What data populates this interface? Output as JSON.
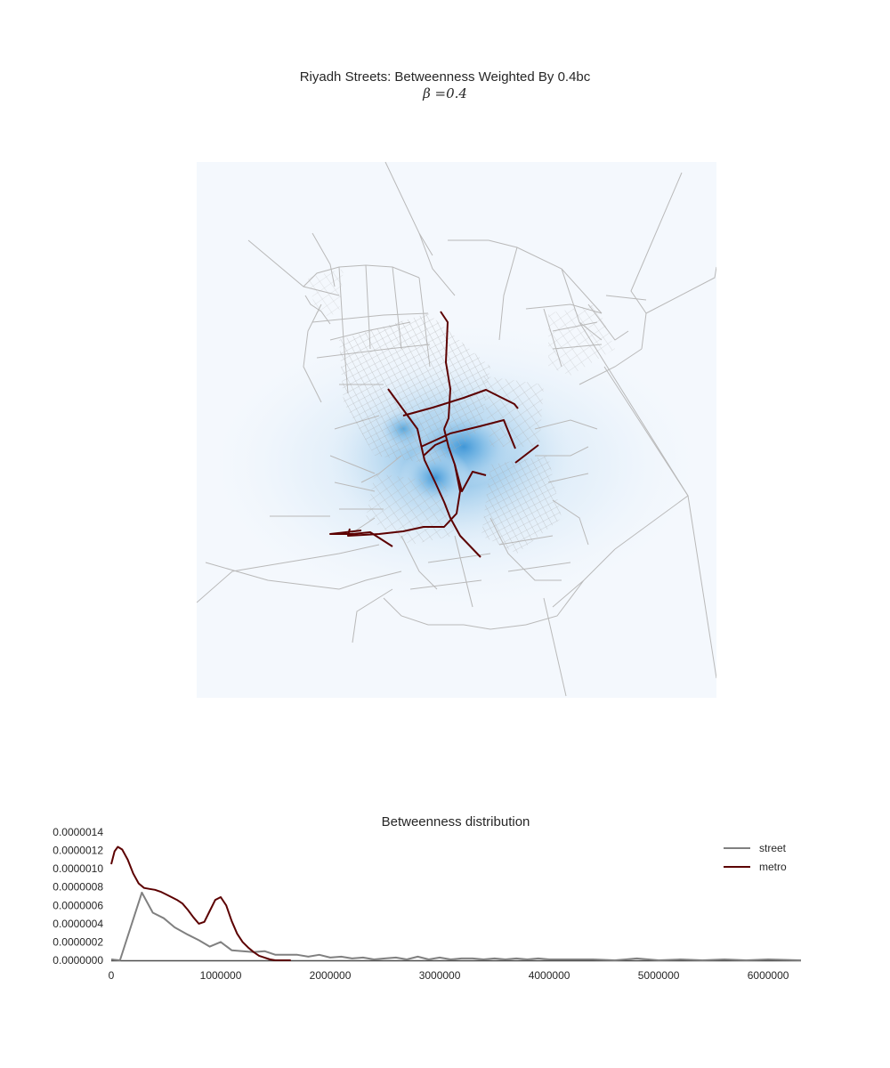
{
  "figure": {
    "title": "Riyadh Streets: Betweenness Weighted By 0.4bc",
    "subtitle": "β =0.4"
  },
  "colors": {
    "street": "#808080",
    "metro": "#5c0000",
    "street_network": "#b4b4b4",
    "density_dark": "#4a9fd8",
    "density_light": "#f4f8fd"
  },
  "chart_data": [
    {
      "type": "heatmap",
      "title": "",
      "description_layers": [
        "street-network",
        "metro-lines",
        "betweenness-density"
      ],
      "grid": false
    },
    {
      "type": "line",
      "title": "Betweenness distribution",
      "xlabel": "",
      "ylabel": "",
      "xlim": [
        0,
        6300000
      ],
      "ylim": [
        0,
        1.4e-06
      ],
      "xticks": [
        0,
        1000000,
        2000000,
        3000000,
        4000000,
        5000000,
        6000000
      ],
      "xtick_labels": [
        "0",
        "1000000",
        "2000000",
        "3000000",
        "4000000",
        "5000000",
        "6000000"
      ],
      "yticks": [
        0,
        2e-07,
        4e-07,
        6e-07,
        8e-07,
        1e-06,
        1.2e-06,
        1.4e-06
      ],
      "ytick_labels": [
        "0.0000000",
        "0.0000002",
        "0.0000004",
        "0.0000006",
        "0.0000008",
        "0.0000010",
        "0.0000012",
        "0.0000014"
      ],
      "legend_position": "top-right",
      "grid": false,
      "series": [
        {
          "name": "street",
          "x": [
            0,
            80000,
            280000,
            380000,
            480000,
            580000,
            700000,
            800000,
            900000,
            1000000,
            1100000,
            1200000,
            1300000,
            1400000,
            1500000,
            1600000,
            1700000,
            1800000,
            1900000,
            2000000,
            2100000,
            2200000,
            2300000,
            2400000,
            2500000,
            2600000,
            2700000,
            2800000,
            2900000,
            3000000,
            3100000,
            3200000,
            3300000,
            3400000,
            3500000,
            3600000,
            3700000,
            3800000,
            3900000,
            4000000,
            4200000,
            4400000,
            4600000,
            4700000,
            4800000,
            5000000,
            5200000,
            5400000,
            5600000,
            5800000,
            6000000,
            6300000
          ],
          "values": [
            1e-08,
            0.0,
            7.4e-07,
            5.2e-07,
            4.6e-07,
            3.6e-07,
            2.8e-07,
            2.2e-07,
            1.5e-07,
            2e-07,
            1.1e-07,
            1e-07,
            9e-08,
            1e-07,
            6e-08,
            6e-08,
            6e-08,
            4e-08,
            6e-08,
            3e-08,
            4e-08,
            2e-08,
            3e-08,
            1e-08,
            2e-08,
            3e-08,
            1e-08,
            4e-08,
            1e-08,
            3e-08,
            1e-08,
            2e-08,
            2e-08,
            1e-08,
            2e-08,
            1e-08,
            2e-08,
            1e-08,
            2e-08,
            1e-08,
            1e-08,
            1e-08,
            0.0,
            1e-08,
            2e-08,
            0.0,
            1e-08,
            0.0,
            1e-08,
            0.0,
            1e-08,
            0.0
          ]
        },
        {
          "name": "metro",
          "x": [
            0,
            30000,
            60000,
            100000,
            150000,
            200000,
            250000,
            300000,
            350000,
            400000,
            450000,
            500000,
            550000,
            600000,
            650000,
            700000,
            750000,
            800000,
            850000,
            900000,
            950000,
            1000000,
            1050000,
            1100000,
            1150000,
            1200000,
            1250000,
            1300000,
            1350000,
            1400000,
            1450000,
            1500000,
            1550000,
            1600000,
            1640000
          ],
          "values": [
            1.05e-06,
            1.19e-06,
            1.24e-06,
            1.21e-06,
            1.1e-06,
            9.5e-07,
            8.4e-07,
            7.9e-07,
            7.8e-07,
            7.7e-07,
            7.5e-07,
            7.2e-07,
            6.9e-07,
            6.6e-07,
            6.2e-07,
            5.5e-07,
            4.7e-07,
            4e-07,
            4.2e-07,
            5.4e-07,
            6.6e-07,
            6.9e-07,
            6e-07,
            4.3e-07,
            2.9e-07,
            2e-07,
            1.4e-07,
            9e-08,
            5e-08,
            3e-08,
            1e-08,
            0.0,
            0.0,
            0.0,
            0.0
          ]
        }
      ]
    }
  ]
}
